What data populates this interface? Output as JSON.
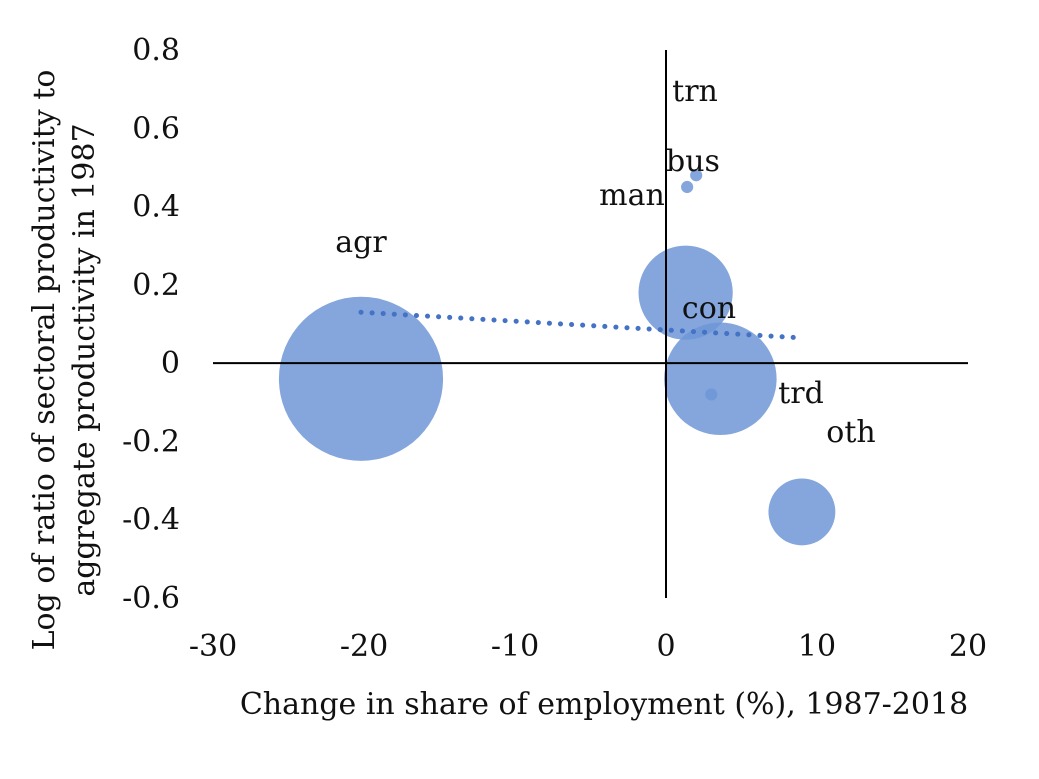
{
  "chart_data": {
    "type": "bubble",
    "xlabel": "Change in share of employment (%), 1987-2018",
    "ylabel_lines": [
      "Log of ratio of sectoral productivity to",
      "aggregate productivity in 1987"
    ],
    "xlim": [
      -30,
      20
    ],
    "ylim": [
      -0.6,
      0.8
    ],
    "xticks": [
      -30,
      -20,
      -10,
      0,
      10,
      20
    ],
    "yticks": [
      0.8,
      0.6,
      0.4,
      0.2,
      0,
      -0.2,
      -0.4,
      -0.6
    ],
    "xtick_labels": [
      "-30",
      "-20",
      "-10",
      "0",
      "10",
      "20"
    ],
    "ytick_labels": [
      "0.8",
      "0.6",
      "0.4",
      "0.2",
      "0",
      "-0.2",
      "-0.4",
      "-0.6"
    ],
    "grid": false,
    "bubble_color": "#6f97d6",
    "overlap_color": "#4a77c4",
    "trendline_color": "#4472c4",
    "points": [
      {
        "label": "agr",
        "x": -20.2,
        "y": -0.04,
        "size": 5.4
      },
      {
        "label": "man",
        "x": 1.4,
        "y": 0.45,
        "size": 0.4
      },
      {
        "label": "bus",
        "x": 2.0,
        "y": 0.48,
        "size": 0.4
      },
      {
        "label": "trn",
        "x": 1.3,
        "y": 0.18,
        "size": 3.1
      },
      {
        "label": "con",
        "x": 3.0,
        "y": -0.08,
        "size": 0.4
      },
      {
        "label": "trd",
        "x": 3.6,
        "y": -0.04,
        "size": 3.7
      },
      {
        "label": "oth",
        "x": 9.0,
        "y": -0.38,
        "size": 2.2
      }
    ],
    "trendline": {
      "x": [
        -20.2,
        8.8
      ],
      "y": [
        0.13,
        0.065
      ]
    }
  }
}
